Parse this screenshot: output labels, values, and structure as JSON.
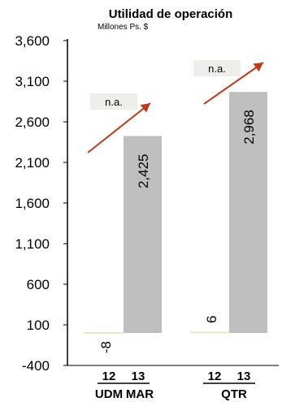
{
  "chart_data": {
    "type": "bar",
    "title": "Utilidad de operación",
    "subtitle": "Millones Ps. $",
    "ylim": [
      -400,
      3600
    ],
    "yticks": [
      "3,600",
      "3,100",
      "2,600",
      "2,100",
      "1,600",
      "1,100",
      "600",
      "100",
      "-400"
    ],
    "ytick_values": [
      3600,
      3100,
      2600,
      2100,
      1600,
      1100,
      600,
      100,
      -400
    ],
    "bar_color": "#bfbfbf",
    "small_bar_color": "#e8e4c6",
    "arrow_color": "#c0391b",
    "na_box_color": "#eeeeea",
    "groups": [
      {
        "group_label": "UDM",
        "period_label": "MAR",
        "bars": [
          {
            "year": "12",
            "value": -8,
            "label": "-8"
          },
          {
            "year": "13",
            "value": 2425,
            "label": "2,425"
          }
        ],
        "change_label": "n.a."
      },
      {
        "group_label": "QTR",
        "period_label": "",
        "bars": [
          {
            "year": "12",
            "value": 6,
            "label": "6"
          },
          {
            "year": "13",
            "value": 2968,
            "label": "2,968"
          }
        ],
        "change_label": "n.a."
      }
    ]
  }
}
